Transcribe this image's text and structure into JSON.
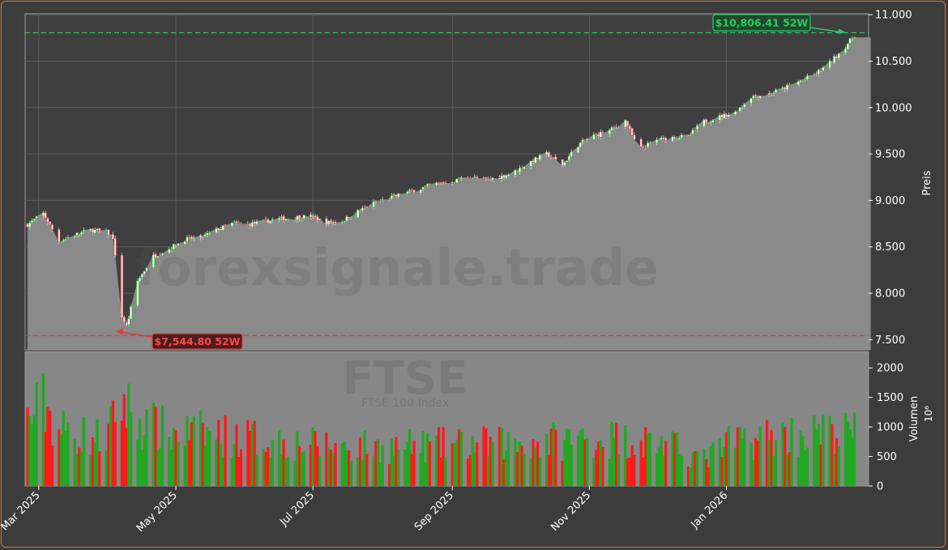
{
  "colors": {
    "background": "#3c3c3c",
    "frame": "#e0702a",
    "price_area": "#8a8a8a",
    "volume_area": "#878787",
    "up": "#22a822",
    "down": "#ff1a1a",
    "high_line": "#2ec866",
    "low_line": "#e03a3a",
    "text": "#ffffff"
  },
  "watermark": {
    "site": "forexsignale.trade",
    "symbol": "FTSE",
    "name": "FTSE 100 Index"
  },
  "chart_data": {
    "type": "candlestick",
    "price_axis": {
      "label": "Preis",
      "ylim": [
        7390,
        11010
      ],
      "ticks": [
        7500,
        8000,
        8500,
        9000,
        9500,
        10000,
        10500,
        11000
      ],
      "tick_labels": [
        "7.500",
        "8.000",
        "8.500",
        "9.000",
        "9.500",
        "10.000",
        "10.500",
        "11.000"
      ]
    },
    "volume_axis": {
      "label": "Volumen",
      "unit": "10⁶",
      "ylim": [
        0,
        2250
      ],
      "ticks": [
        0,
        500,
        1000,
        1500,
        2000
      ],
      "tick_labels": [
        "0",
        "500",
        "1000",
        "1500",
        "2000"
      ]
    },
    "x_axis": {
      "start": "2025-02-24",
      "end": "2026-02-27",
      "ticks": [
        {
          "date": "2025-03-01",
          "label": "Mar 2025"
        },
        {
          "date": "2025-05-01",
          "label": "May 2025"
        },
        {
          "date": "2025-07-01",
          "label": "Jul 2025"
        },
        {
          "date": "2025-09-01",
          "label": "Sep 2025"
        },
        {
          "date": "2025-11-01",
          "label": "Nov 2025"
        },
        {
          "date": "2026-01-01",
          "label": "Jan 2026"
        }
      ]
    },
    "high_52w": {
      "value": 10806.41,
      "label": "$10,806.41 52W"
    },
    "low_52w": {
      "value": 7544.8,
      "label": "$7,544.80 52W"
    },
    "price_path": [
      [
        "2025-02-24",
        8740
      ],
      [
        "2025-03-03",
        8860
      ],
      [
        "2025-03-10",
        8560
      ],
      [
        "2025-03-17",
        8630
      ],
      [
        "2025-03-24",
        8680
      ],
      [
        "2025-03-31",
        8660
      ],
      [
        "2025-04-03",
        8600
      ],
      [
        "2025-04-07",
        7750
      ],
      [
        "2025-04-09",
        7640
      ],
      [
        "2025-04-14",
        8130
      ],
      [
        "2025-04-21",
        8400
      ],
      [
        "2025-04-28",
        8480
      ],
      [
        "2025-05-05",
        8580
      ],
      [
        "2025-05-12",
        8600
      ],
      [
        "2025-05-19",
        8680
      ],
      [
        "2025-05-26",
        8750
      ],
      [
        "2025-06-02",
        8740
      ],
      [
        "2025-06-16",
        8800
      ],
      [
        "2025-06-30",
        8830
      ],
      [
        "2025-07-07",
        8760
      ],
      [
        "2025-07-14",
        8780
      ],
      [
        "2025-07-21",
        8880
      ],
      [
        "2025-07-28",
        8970
      ],
      [
        "2025-08-11",
        9080
      ],
      [
        "2025-08-25",
        9180
      ],
      [
        "2025-09-01",
        9200
      ],
      [
        "2025-09-08",
        9260
      ],
      [
        "2025-09-15",
        9220
      ],
      [
        "2025-09-22",
        9250
      ],
      [
        "2025-09-29",
        9310
      ],
      [
        "2025-10-06",
        9420
      ],
      [
        "2025-10-13",
        9500
      ],
      [
        "2025-10-20",
        9380
      ],
      [
        "2025-10-27",
        9600
      ],
      [
        "2025-11-03",
        9700
      ],
      [
        "2025-11-10",
        9750
      ],
      [
        "2025-11-17",
        9860
      ],
      [
        "2025-11-21",
        9640
      ],
      [
        "2025-11-24",
        9560
      ],
      [
        "2025-12-01",
        9650
      ],
      [
        "2025-12-08",
        9680
      ],
      [
        "2025-12-15",
        9690
      ],
      [
        "2025-12-22",
        9850
      ],
      [
        "2026-01-05",
        9950
      ],
      [
        "2026-01-12",
        10120
      ],
      [
        "2026-01-19",
        10140
      ],
      [
        "2026-01-26",
        10200
      ],
      [
        "2026-02-02",
        10280
      ],
      [
        "2026-02-09",
        10350
      ],
      [
        "2026-02-16",
        10480
      ],
      [
        "2026-02-23",
        10660
      ],
      [
        "2026-02-27",
        10780
      ]
    ],
    "volume_profile": [
      [
        "2025-02-24",
        1100
      ],
      [
        "2025-03-03",
        1400
      ],
      [
        "2025-03-10",
        950
      ],
      [
        "2025-03-17",
        880
      ],
      [
        "2025-03-31",
        800
      ],
      [
        "2025-04-07",
        1450
      ],
      [
        "2025-04-14",
        1100
      ],
      [
        "2025-04-28",
        900
      ],
      [
        "2025-05-12",
        900
      ],
      [
        "2025-06-02",
        820
      ],
      [
        "2025-07-01",
        700
      ],
      [
        "2025-08-01",
        650
      ],
      [
        "2025-09-01",
        700
      ],
      [
        "2025-10-01",
        720
      ],
      [
        "2025-11-03",
        820
      ],
      [
        "2025-12-01",
        760
      ],
      [
        "2025-12-22",
        450
      ],
      [
        "2026-01-05",
        780
      ],
      [
        "2026-02-02",
        880
      ],
      [
        "2026-02-27",
        900
      ]
    ]
  }
}
